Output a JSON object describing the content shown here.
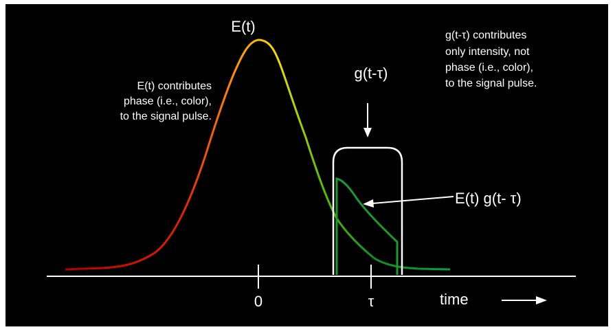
{
  "pulse_label": "E(t)",
  "gate_label": "g(t-τ)",
  "product_label": "E(t) g(t- τ)",
  "left_note": [
    "E(t) contributes",
    "phase (i.e., color),",
    "to the signal pulse."
  ],
  "right_note": [
    "g(t-τ) contributes",
    "only intensity, not",
    "phase (i.e., color),",
    "to the signal pulse."
  ],
  "axis": {
    "zero": "0",
    "delay": "τ",
    "label": "time"
  }
}
